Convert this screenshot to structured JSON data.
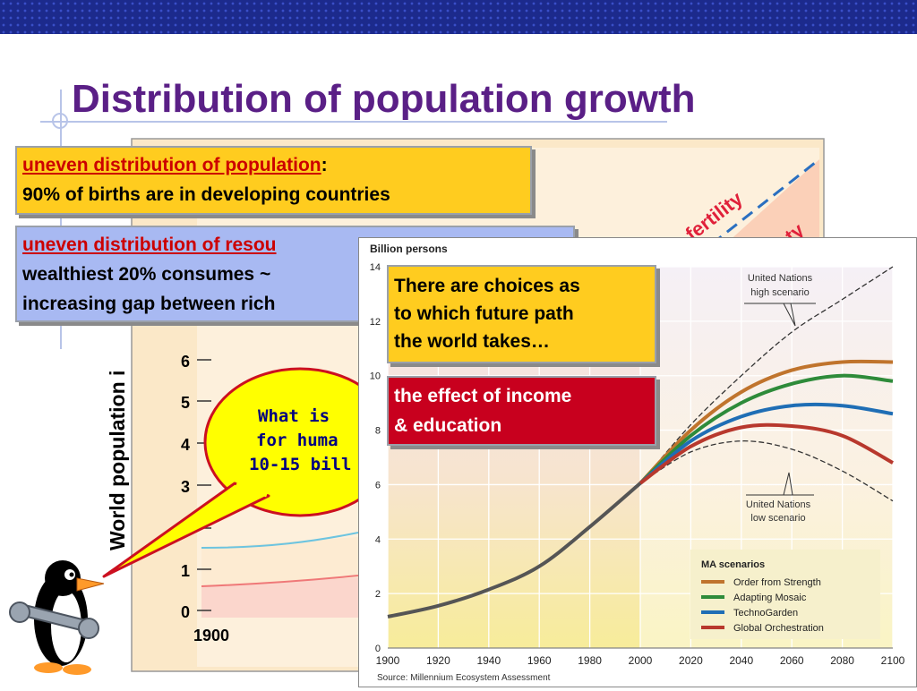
{
  "slide": {
    "title": "Distribution of population growth"
  },
  "callouts": {
    "births_heading": "uneven distribution of population",
    "births_colon": ":",
    "births_text": "90% of births are in developing countries",
    "resources_heading": "uneven distribution of resou",
    "resources_line1": "wealthiest 20% consumes ~",
    "resources_line2": "increasing gap between rich",
    "choices_line1": "There are choices as",
    "choices_line2": "to which future path",
    "choices_line3": "the world takes…",
    "income_line1": "the effect of income",
    "income_line2": "& education"
  },
  "speech_bubble": {
    "line1": "What is",
    "line2": "for huma",
    "line3": "10-15 bill"
  },
  "background_chart": {
    "ylabel": "World population i",
    "yticks": [
      "6",
      "5",
      "4",
      "3",
      "1",
      "0"
    ],
    "first_x_tick": "1900",
    "fertility_label": "fertility",
    "label_fragment": "ty"
  },
  "chart_data": {
    "type": "line",
    "title": "Billion persons",
    "source": "Source: Millennium Ecosystem Assessment",
    "xlim": [
      1900,
      2100
    ],
    "ylim": [
      0,
      14
    ],
    "x_ticks": [
      "1900",
      "1920",
      "1940",
      "1960",
      "1980",
      "2000",
      "2020",
      "2040",
      "2060",
      "2080",
      "2100"
    ],
    "y_ticks": [
      "0",
      "2",
      "4",
      "6",
      "8",
      "10",
      "12",
      "14"
    ],
    "historical": {
      "x": [
        1900,
        1920,
        1940,
        1960,
        1980,
        2000
      ],
      "y": [
        1.15,
        1.55,
        2.15,
        3.0,
        4.45,
        6.05
      ]
    },
    "scenarios": [
      {
        "name": "Order from Strength",
        "color": "#c0742d",
        "x": [
          2000,
          2020,
          2040,
          2060,
          2080,
          2100
        ],
        "y": [
          6.05,
          8.0,
          9.4,
          10.2,
          10.5,
          10.5
        ]
      },
      {
        "name": "Adapting Mosaic",
        "color": "#2e8b3a",
        "x": [
          2000,
          2020,
          2040,
          2060,
          2080,
          2100
        ],
        "y": [
          6.05,
          7.8,
          9.0,
          9.7,
          10.0,
          9.8
        ]
      },
      {
        "name": "TechnoGarden",
        "color": "#1f6eb5",
        "x": [
          2000,
          2020,
          2040,
          2060,
          2080,
          2100
        ],
        "y": [
          6.05,
          7.6,
          8.5,
          8.9,
          8.9,
          8.6
        ]
      },
      {
        "name": "Global Orchestration",
        "color": "#b8382d",
        "x": [
          2000,
          2020,
          2040,
          2060,
          2080,
          2100
        ],
        "y": [
          6.05,
          7.4,
          8.1,
          8.15,
          7.8,
          6.8
        ]
      }
    ],
    "bounds": [
      {
        "name": "United Nations high scenario",
        "x": [
          2000,
          2020,
          2040,
          2060,
          2080,
          2100
        ],
        "y": [
          6.05,
          8.2,
          10.0,
          11.6,
          12.8,
          14.0
        ]
      },
      {
        "name": "United Nations low scenario",
        "x": [
          2000,
          2020,
          2040,
          2060,
          2080,
          2100
        ],
        "y": [
          6.05,
          7.2,
          7.6,
          7.3,
          6.5,
          5.4
        ]
      }
    ],
    "legend_title": "MA scenarios",
    "annotations": {
      "high_line1": "United Nations",
      "high_line2": "high scenario",
      "low_line1": "United Nations",
      "low_line2": "low scenario"
    }
  }
}
